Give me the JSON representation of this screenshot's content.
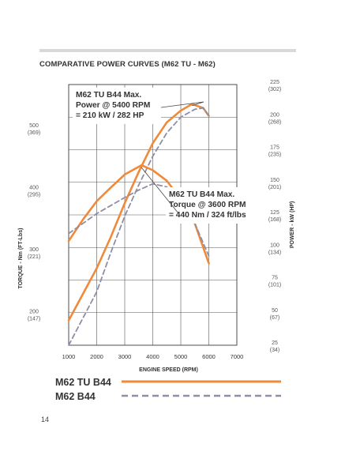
{
  "page": {
    "title": "COMPARATIVE POWER CURVES (M62 TU - M62)",
    "page_number": "14"
  },
  "colors": {
    "m62tu": "#f08a3a",
    "m62": "#8e8ea6",
    "grid": "#555555",
    "text": "#333333"
  },
  "chart_data": {
    "type": "line",
    "title": "COMPARATIVE POWER CURVES (M62 TU - M62)",
    "xlabel": "ENGINE SPEED (RPM)",
    "ylabel_left": "TORQUE - Nm (FT-Lbs)",
    "ylabel_right": "POWER - kW (HP)",
    "xlim": [
      1000,
      7000
    ],
    "x_ticks": [
      "1000",
      "2000",
      "3000",
      "4000",
      "5000",
      "6000",
      "7000"
    ],
    "torque_axis": {
      "range": [
        150,
        570
      ],
      "ticks": [
        {
          "value": 500,
          "label": "500",
          "sub": "(369)"
        },
        {
          "value": 400,
          "label": "400",
          "sub": "(295)"
        },
        {
          "value": 300,
          "label": "300",
          "sub": "(221)"
        },
        {
          "value": 200,
          "label": "200",
          "sub": "(147)"
        }
      ]
    },
    "power_axis": {
      "range": [
        25,
        225
      ],
      "ticks": [
        {
          "value": 225,
          "label": "225",
          "sub": "(302)"
        },
        {
          "value": 200,
          "label": "200",
          "sub": "(268)"
        },
        {
          "value": 175,
          "label": "175",
          "sub": "(235)"
        },
        {
          "value": 150,
          "label": "150",
          "sub": "(201)"
        },
        {
          "value": 125,
          "label": "125",
          "sub": "(168)"
        },
        {
          "value": 100,
          "label": "100",
          "sub": "(134)"
        },
        {
          "value": 75,
          "label": "75",
          "sub": "(101)"
        },
        {
          "value": 50,
          "label": "50",
          "sub": "(67)"
        },
        {
          "value": 25,
          "label": "25",
          "sub": "(34)"
        }
      ]
    },
    "series": [
      {
        "name": "M62 TU B44",
        "quantity": "power",
        "style": "solid",
        "x": [
          1000,
          2000,
          2500,
          3000,
          3500,
          4000,
          4500,
          5000,
          5400,
          5800,
          6000
        ],
        "y": [
          44,
          84,
          108,
          134,
          158,
          180,
          196,
          205,
          210,
          207,
          201
        ]
      },
      {
        "name": "M62 B44",
        "quantity": "power",
        "style": "dashed",
        "x": [
          1000,
          2000,
          2500,
          3000,
          3500,
          4000,
          4500,
          5000,
          5500,
          5800,
          6000
        ],
        "y": [
          25,
          66,
          96,
          124,
          148,
          170,
          188,
          200,
          206,
          207,
          201
        ]
      },
      {
        "name": "M62 TU B44",
        "quantity": "torque",
        "style": "solid",
        "x": [
          1000,
          1500,
          2000,
          2500,
          3000,
          3600,
          4000,
          4500,
          5000,
          5500,
          6000
        ],
        "y": [
          318,
          352,
          382,
          404,
          425,
          440,
          432,
          415,
          385,
          346,
          282
        ]
      },
      {
        "name": "M62 B44",
        "quantity": "torque",
        "style": "dashed",
        "x": [
          1000,
          1500,
          2000,
          2500,
          3000,
          3500,
          4000,
          4500,
          5000,
          5500,
          6000
        ],
        "y": [
          330,
          346,
          362,
          375,
          388,
          400,
          410,
          405,
          380,
          346,
          294
        ]
      }
    ],
    "annotations": [
      {
        "lines": [
          "M62 TU B44 Max.",
          "Power @ 5400 RPM",
          "= 210 kW / 282 HP"
        ],
        "x": 5400,
        "power": 210
      },
      {
        "lines": [
          "M62 TU B44 Max.",
          "Torque @ 3600 RPM",
          "= 440 Nm / 324 ft/lbs"
        ],
        "x": 3600,
        "torque": 440
      }
    ],
    "legend": [
      {
        "label": "M62 TU B44",
        "style": "solid"
      },
      {
        "label": "M62 B44",
        "style": "dashed"
      }
    ],
    "grid": true
  }
}
